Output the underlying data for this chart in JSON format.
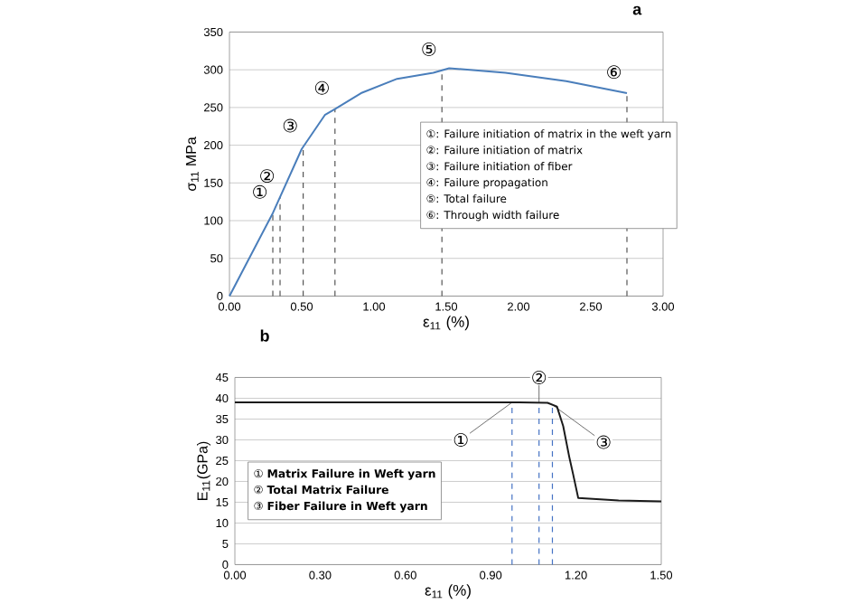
{
  "chart_data": [
    {
      "type": "line",
      "title": "a",
      "xlabel": "ε$_{11}$ (%)",
      "ylabel": "σ$_{11}$ MPa",
      "x": [
        0,
        0.3,
        0.5,
        0.66,
        0.73,
        0.91,
        1.16,
        1.41,
        1.52,
        1.91,
        2.33,
        2.75
      ],
      "series": [
        {
          "color": "#4a7ebb",
          "values": [
            0,
            110,
            195,
            240,
            248,
            269,
            288,
            296,
            302,
            296,
            285,
            269
          ]
        }
      ],
      "xlim": [
        0,
        3
      ],
      "ylim": [
        0,
        350
      ],
      "xticks": [
        {
          "value": 0,
          "label": "0.00"
        },
        {
          "value": 0.5,
          "label": "0.50"
        },
        {
          "value": 1,
          "label": "1.00"
        },
        {
          "value": 1.5,
          "label": "1.50"
        },
        {
          "value": 2,
          "label": "2.00"
        },
        {
          "value": 2.5,
          "label": "2.50"
        },
        {
          "value": 3,
          "label": "3.00"
        }
      ],
      "yticks": [
        0,
        50,
        100,
        150,
        200,
        250,
        300,
        350
      ],
      "grid": "y",
      "ref_lines": [
        {
          "axis": "x",
          "value": 0.3,
          "label": "①",
          "color": "#555555",
          "line_style": "dashed"
        },
        {
          "axis": "x",
          "value": 0.35,
          "label": "②",
          "color": "#555555",
          "line_style": "dashed"
        },
        {
          "axis": "x",
          "value": 0.51,
          "label": "③",
          "color": "#555555",
          "line_style": "dashed"
        },
        {
          "axis": "x",
          "value": 0.73,
          "label": "④",
          "color": "#555555",
          "line_style": "dashed"
        },
        {
          "axis": "x",
          "value": 1.47,
          "label": "⑤",
          "color": "#555555",
          "line_style": "dashed"
        },
        {
          "axis": "x",
          "value": 2.75,
          "label": "⑥",
          "color": "#555555",
          "line_style": "dashed"
        }
      ],
      "annotations": [
        "①: Failure initiation of matrix in the weft yarn",
        "②: Failure initiation of matrix",
        "③: Failure initiation of fiber",
        "④: Failure propagation",
        "⑤: Total failure",
        "⑥: Through width failure"
      ]
    },
    {
      "type": "line",
      "title": "b",
      "xlabel": "ε$_{11}$ (%)",
      "ylabel": "E$_{11}$(GPa)",
      "x": [
        0,
        0.5,
        0.9,
        1.0,
        1.1,
        1.133,
        1.155,
        1.176,
        1.19,
        1.208,
        1.35,
        1.5
      ],
      "series": [
        {
          "color": "#1a1a1a",
          "values": [
            39,
            39,
            39,
            39,
            38.9,
            38,
            33.3,
            26,
            21.7,
            16,
            15.4,
            15.2
          ]
        }
      ],
      "xlim": [
        0,
        1.5
      ],
      "ylim": [
        0,
        45
      ],
      "xticks": [
        {
          "value": 0,
          "label": "0.00"
        },
        {
          "value": 0.3,
          "label": "0.30"
        },
        {
          "value": 0.6,
          "label": "0.60"
        },
        {
          "value": 0.9,
          "label": "0.90"
        },
        {
          "value": 1.2,
          "label": "1.20"
        },
        {
          "value": 1.5,
          "label": "1.50"
        }
      ],
      "yticks": [
        0,
        5,
        10,
        15,
        20,
        25,
        30,
        35,
        40,
        45
      ],
      "grid": "y",
      "ref_lines": [
        {
          "axis": "x",
          "value": 0.975,
          "label": "①",
          "color": "#4472c4",
          "line_style": "dashed"
        },
        {
          "axis": "x",
          "value": 1.07,
          "label": "②",
          "color": "#4472c4",
          "line_style": "dashed"
        },
        {
          "axis": "x",
          "value": 1.117,
          "label": "③",
          "color": "#4472c4",
          "line_style": "dashed"
        }
      ],
      "annotations": [
        "① **Matrix Failure in Weft yarn**",
        "② **Total Matrix Failure**",
        "③ **Fiber Failure in Weft yarn**"
      ]
    }
  ]
}
